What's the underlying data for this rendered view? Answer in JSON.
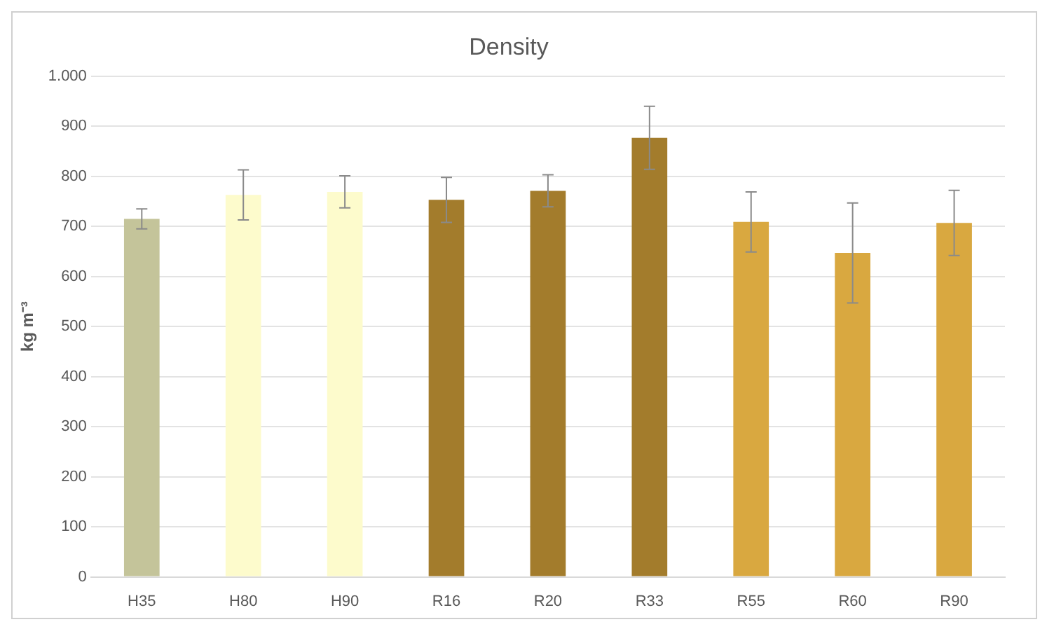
{
  "chart_data": {
    "type": "bar",
    "title": "Density",
    "ylabel": "kg m⁻³",
    "categories": [
      "H35",
      "H80",
      "H90",
      "R16",
      "R20",
      "R33",
      "R55",
      "R60",
      "R90"
    ],
    "values": [
      715,
      763,
      769,
      753,
      771,
      877,
      709,
      647,
      707
    ],
    "errors": [
      20,
      50,
      32,
      45,
      32,
      63,
      60,
      100,
      65
    ],
    "colors": [
      "#c4c49a",
      "#fdfbcc",
      "#fdfbcc",
      "#a37c2c",
      "#a37c2c",
      "#a37c2c",
      "#d9a840",
      "#d9a840",
      "#d9a840"
    ],
    "ylim": [
      0,
      1000
    ],
    "yticks": [
      0,
      100,
      200,
      300,
      400,
      500,
      600,
      700,
      800,
      900,
      {
        "value": 1000,
        "label": "1.000"
      }
    ],
    "grid": "y",
    "legend": false
  }
}
